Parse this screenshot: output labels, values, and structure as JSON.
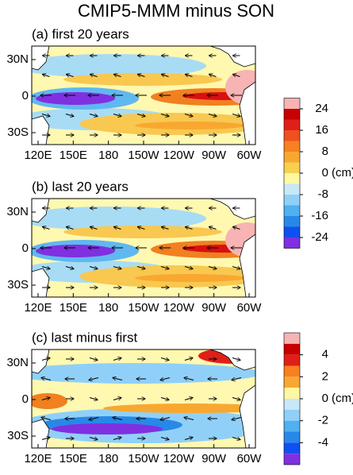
{
  "title": "CMIP5-MMM minus SON",
  "panels": [
    {
      "label": "(a) first 20 years",
      "xticks": [
        "120E",
        "150E",
        "180",
        "150W",
        "120W",
        "90W",
        "60W"
      ],
      "yticks": [
        "30N",
        "0",
        "30S"
      ]
    },
    {
      "label": "(b) last 20 years",
      "xticks": [
        "120E",
        "150E",
        "180",
        "150W",
        "120W",
        "90W",
        "60W"
      ],
      "yticks": [
        "30N",
        "0",
        "30S"
      ]
    },
    {
      "label": "(c) last minus first",
      "xticks": [
        "120E",
        "150E",
        "180",
        "150W",
        "120W",
        "90W",
        "60W"
      ],
      "yticks": [
        "30N",
        "0",
        "30S"
      ]
    }
  ],
  "colorbars": [
    {
      "unit": "(cm)",
      "range": [
        28,
        -28
      ],
      "ticks": [
        24,
        16,
        8,
        0,
        -8,
        -16,
        -24
      ],
      "colors": [
        "#f8b4b4",
        "#c80000",
        "#e02018",
        "#f05020",
        "#f88020",
        "#f8a830",
        "#f8d050",
        "#fff8a0",
        "#c8e8f8",
        "#90d0f8",
        "#50b0f0",
        "#2888e8",
        "#1050f0",
        "#8030e0"
      ]
    },
    {
      "unit": "(cm)",
      "range": [
        6,
        -6
      ],
      "ticks": [
        4,
        2,
        0,
        -2,
        -4
      ],
      "colors": [
        "#f8b4b4",
        "#c80000",
        "#e02018",
        "#f88020",
        "#f8a830",
        "#fff8a0",
        "#c8e8f8",
        "#90d0f8",
        "#50b0f0",
        "#2888e8",
        "#1050f0",
        "#8030e0"
      ]
    }
  ]
}
